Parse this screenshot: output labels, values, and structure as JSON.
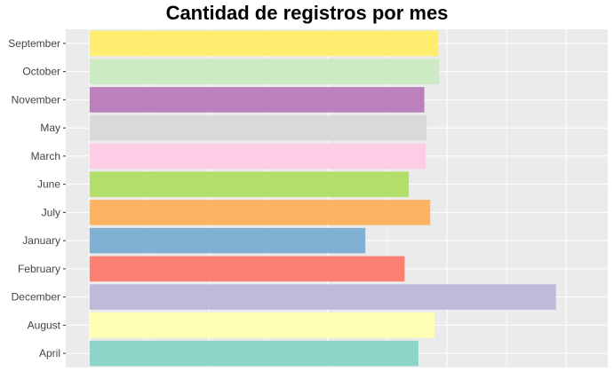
{
  "chart_data": {
    "type": "bar",
    "orientation": "horizontal",
    "title": "Cantidad de registros por mes",
    "xlabel": "",
    "ylabel": "",
    "categories": [
      "September",
      "October",
      "November",
      "May",
      "March",
      "June",
      "July",
      "January",
      "February",
      "December",
      "August",
      "April"
    ],
    "values": [
      2925,
      2935,
      2810,
      2830,
      2820,
      2680,
      2860,
      2315,
      2645,
      3915,
      2895,
      2760
    ],
    "colors": [
      "#FFED6F",
      "#CCEBC5",
      "#BC80BD",
      "#D9D9D9",
      "#FCCDE5",
      "#B3DE69",
      "#FDB462",
      "#80B1D3",
      "#FB8072",
      "#BEBADA",
      "#FFFFB3",
      "#8DD3C7"
    ],
    "xlim": [
      -200,
      4350
    ],
    "grid": true,
    "x_tick_labels_shown": false,
    "legend": "none",
    "panel_background": "#EBEBEB",
    "gridline_color": "#FFFFFF"
  }
}
